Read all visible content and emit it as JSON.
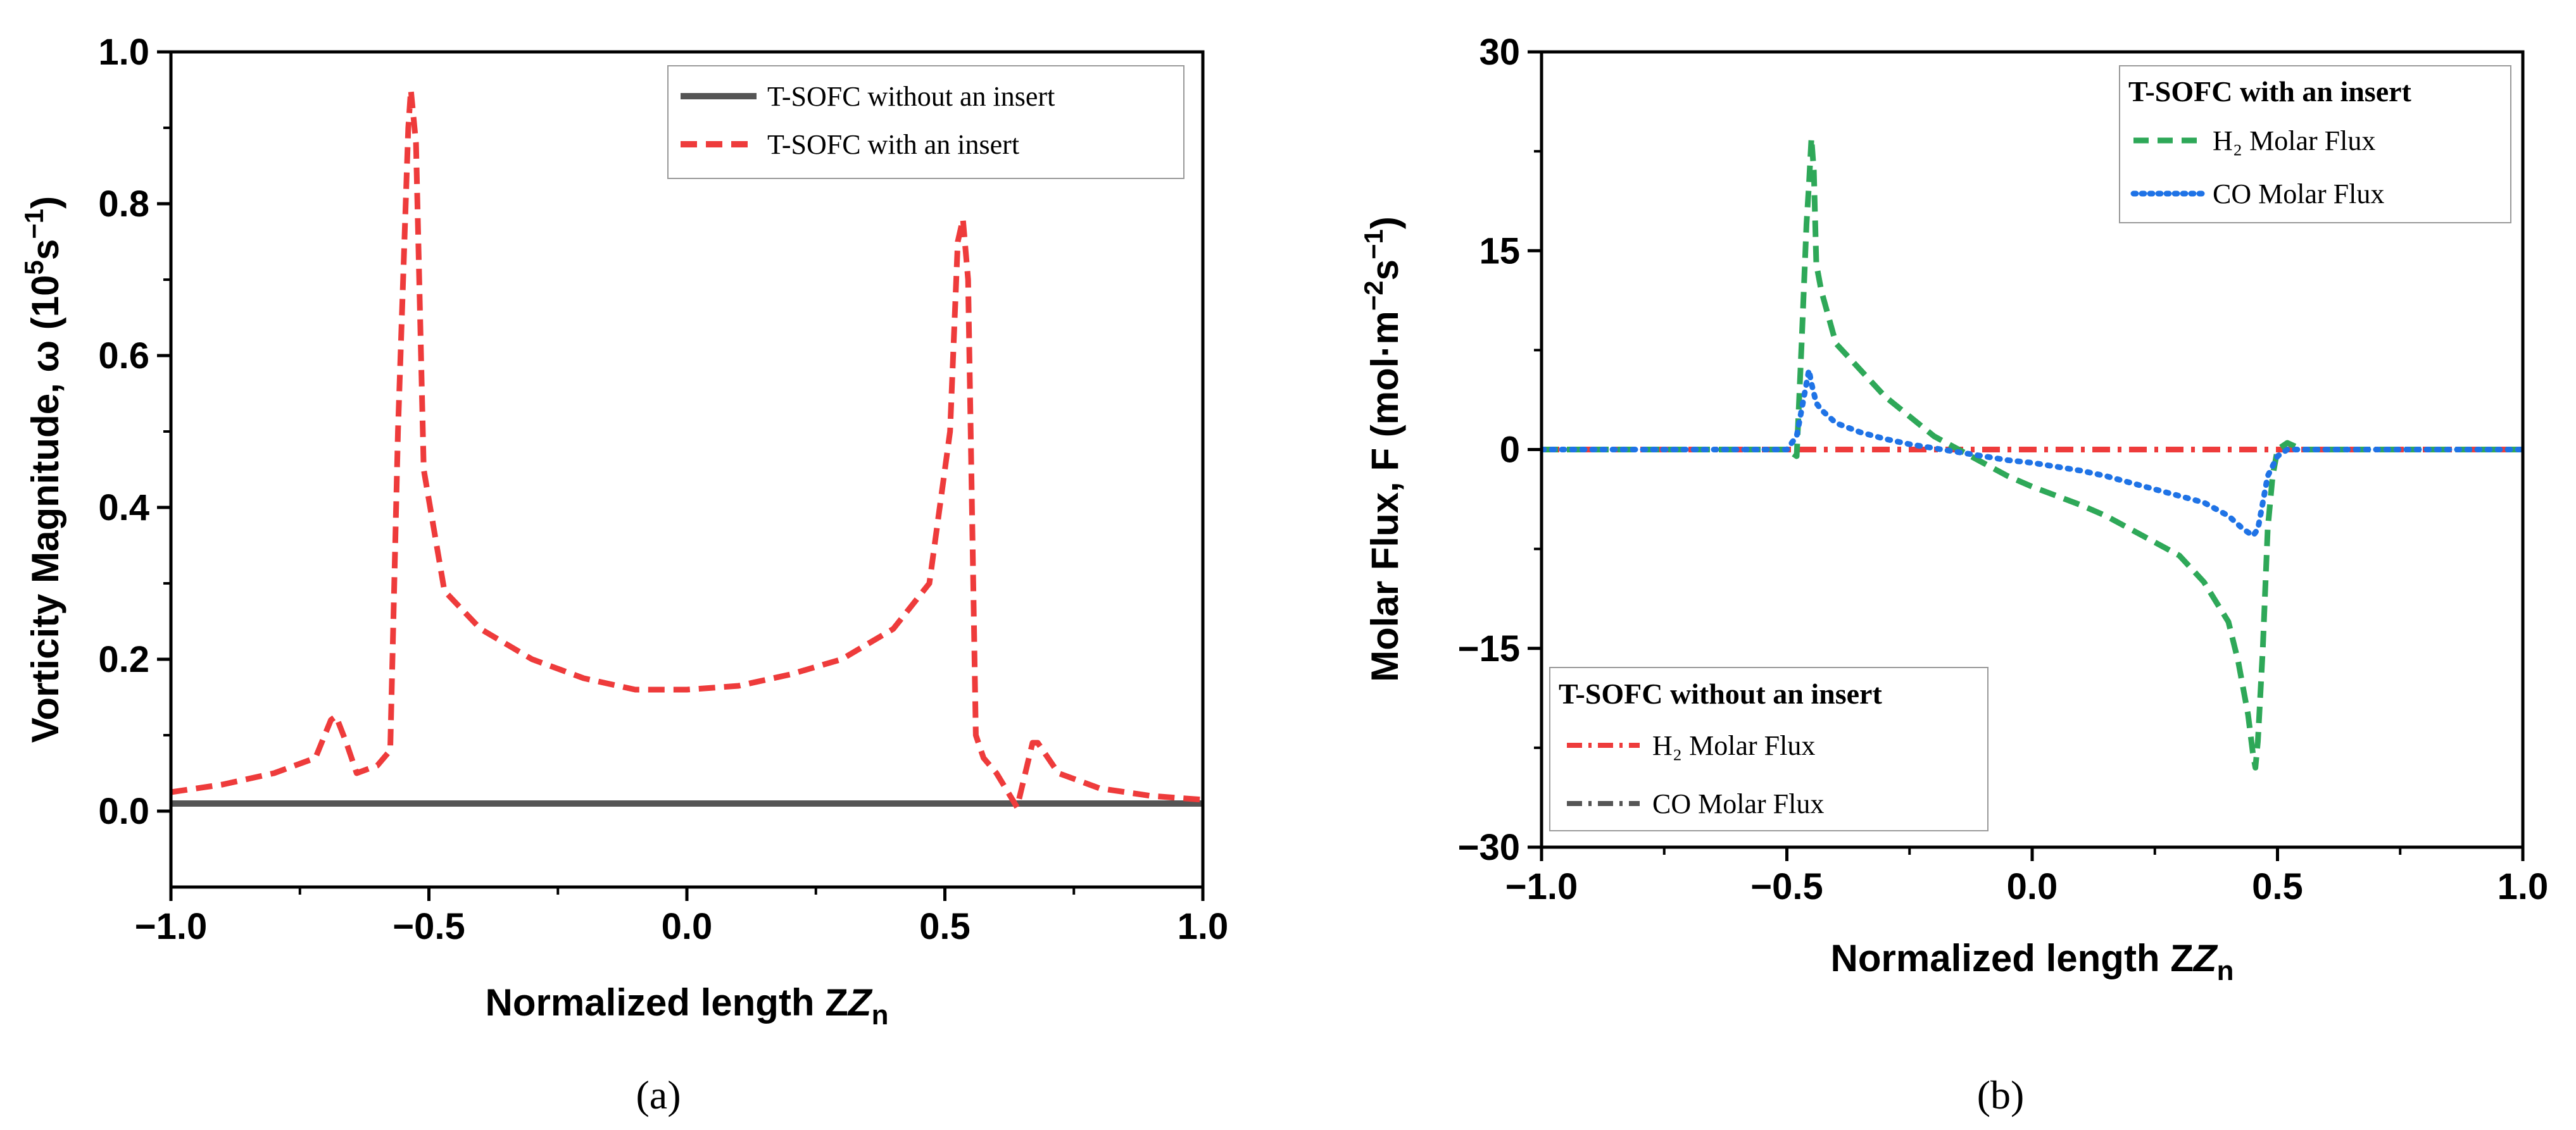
{
  "chart_data": [
    {
      "panel": "(a)",
      "type": "line",
      "xlabel": "Normalized length Z",
      "xlabel_sub": "n",
      "ylabel": "Vorticity Magnitude, ω (10",
      "ylabel_sup1": "5",
      "ylabel_mid": "s",
      "ylabel_sup2": "−1",
      "ylabel_end": ")",
      "xlim": [
        -1.0,
        1.0
      ],
      "ylim": [
        -0.1,
        1.0
      ],
      "xticks": [
        "-1.0",
        "-0.5",
        "0.0",
        "0.5",
        "1.0"
      ],
      "yticks": [
        "0.0",
        "0.2",
        "0.4",
        "0.6",
        "0.8",
        "1.0"
      ],
      "legend_position": "top-right",
      "series": [
        {
          "name": "T-SOFC without an insert",
          "color": "#555555",
          "dash": "solid",
          "x": [
            -1.0,
            1.0
          ],
          "y": [
            0.01,
            0.01
          ]
        },
        {
          "name": "T-SOFC with an insert",
          "color": "#ee3b3b",
          "dash": "dashed",
          "x": [
            -1.0,
            -0.9,
            -0.8,
            -0.72,
            -0.69,
            -0.68,
            -0.66,
            -0.64,
            -0.6,
            -0.575,
            -0.56,
            -0.54,
            -0.535,
            -0.525,
            -0.51,
            -0.47,
            -0.4,
            -0.3,
            -0.2,
            -0.1,
            0.0,
            0.1,
            0.2,
            0.3,
            0.4,
            0.47,
            0.51,
            0.525,
            0.535,
            0.545,
            0.56,
            0.575,
            0.6,
            0.64,
            0.67,
            0.68,
            0.72,
            0.8,
            0.9,
            1.0
          ],
          "y": [
            0.025,
            0.035,
            0.05,
            0.07,
            0.12,
            0.125,
            0.09,
            0.05,
            0.06,
            0.08,
            0.5,
            0.9,
            0.95,
            0.88,
            0.45,
            0.29,
            0.24,
            0.2,
            0.175,
            0.16,
            0.16,
            0.165,
            0.18,
            0.2,
            0.24,
            0.3,
            0.5,
            0.75,
            0.78,
            0.7,
            0.1,
            0.07,
            0.05,
            0.005,
            0.09,
            0.09,
            0.05,
            0.03,
            0.02,
            0.015
          ]
        }
      ]
    },
    {
      "panel": "(b)",
      "type": "line",
      "xlabel": "Normalized length Z",
      "xlabel_sub": "n",
      "ylabel": "Molar Flux, F (mol·m",
      "ylabel_sup1": "−2",
      "ylabel_mid": "s",
      "ylabel_sup2": "−1",
      "ylabel_end": ")",
      "xlim": [
        -1.0,
        1.0
      ],
      "ylim": [
        -30,
        30
      ],
      "xticks": [
        "-1.0",
        "-0.5",
        "0.0",
        "0.5",
        "1.0"
      ],
      "yticks": [
        "-30",
        "-15",
        "0",
        "15",
        "30"
      ],
      "legend_with_title": "T-SOFC with an insert",
      "legend_without_title": "T-SOFC without an insert",
      "series": [
        {
          "name": "H₂ Molar Flux",
          "group": "with",
          "color": "#2ea858",
          "dash": "dashed",
          "x": [
            -1.0,
            -0.5,
            -0.48,
            -0.47,
            -0.46,
            -0.455,
            -0.45,
            -0.445,
            -0.44,
            -0.43,
            -0.4,
            -0.35,
            -0.3,
            -0.25,
            -0.2,
            -0.15,
            -0.1,
            -0.05,
            0.0,
            0.05,
            0.1,
            0.15,
            0.2,
            0.25,
            0.3,
            0.35,
            0.4,
            0.42,
            0.44,
            0.45,
            0.455,
            0.46,
            0.47,
            0.48,
            0.49,
            0.5,
            0.52,
            0.55,
            0.6,
            1.0
          ],
          "y": [
            0,
            0,
            -0.5,
            8,
            17,
            20,
            23.5,
            21,
            14,
            12,
            8,
            6,
            4,
            2.5,
            1,
            0,
            -1,
            -2,
            -2.8,
            -3.5,
            -4.2,
            -5,
            -6,
            -7,
            -8,
            -10,
            -13,
            -16,
            -20,
            -23,
            -24,
            -22,
            -15,
            -6,
            -2,
            0,
            0.5,
            0,
            0,
            0
          ]
        },
        {
          "name": "CO Molar Flux",
          "group": "with",
          "color": "#1f73e6",
          "dash": "dotted",
          "x": [
            -1.0,
            -0.5,
            -0.48,
            -0.46,
            -0.455,
            -0.45,
            -0.44,
            -0.43,
            -0.4,
            -0.35,
            -0.3,
            -0.25,
            -0.2,
            -0.15,
            -0.1,
            -0.05,
            0.0,
            0.05,
            0.1,
            0.15,
            0.2,
            0.25,
            0.3,
            0.35,
            0.4,
            0.43,
            0.45,
            0.46,
            0.47,
            0.48,
            0.5,
            0.52,
            0.55,
            1.0
          ],
          "y": [
            0,
            0,
            1,
            5,
            6,
            5,
            3.5,
            3,
            2,
            1.3,
            0.8,
            0.4,
            0.1,
            -0.2,
            -0.5,
            -0.8,
            -1,
            -1.3,
            -1.6,
            -2,
            -2.5,
            -3,
            -3.5,
            -4,
            -5,
            -6,
            -6.5,
            -6,
            -4,
            -2,
            -0.5,
            0,
            0,
            0
          ]
        },
        {
          "name": "H₂ Molar Flux",
          "group": "without",
          "color": "#ee3b3b",
          "dash": "dashdot",
          "x": [
            -1.0,
            1.0
          ],
          "y": [
            0,
            0
          ]
        },
        {
          "name": "CO Molar Flux",
          "group": "without",
          "color": "#555555",
          "dash": "dashdot",
          "x": [
            -1.0,
            1.0
          ],
          "y": [
            0,
            0
          ]
        }
      ]
    }
  ]
}
